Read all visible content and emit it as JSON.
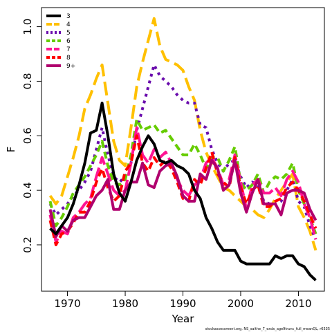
{
  "chart_data": {
    "type": "line",
    "xlabel": "Year",
    "ylabel": "F",
    "xlim": [
      1965.5,
      2014.5
    ],
    "ylim": [
      0.03,
      1.07
    ],
    "xticks": [
      1970,
      1980,
      1990,
      2000,
      2010
    ],
    "yticks": [
      0.2,
      0.4,
      0.6,
      0.8,
      1.0
    ],
    "ytick_labels": [
      "0.2",
      "0.4",
      "0.6",
      "0.8",
      "1.0"
    ],
    "legend_position": "top-left",
    "credit": "stockassessment.org, NS_saithe_7_exdx_age9trunc_full_meanQL, r6535",
    "x": [
      1967,
      1968,
      1969,
      1970,
      1971,
      1972,
      1973,
      1974,
      1975,
      1976,
      1977,
      1978,
      1979,
      1980,
      1981,
      1982,
      1983,
      1984,
      1985,
      1986,
      1987,
      1988,
      1989,
      1990,
      1991,
      1992,
      1993,
      1994,
      1995,
      1996,
      1997,
      1998,
      1999,
      2000,
      2001,
      2002,
      2003,
      2004,
      2005,
      2006,
      2007,
      2008,
      2009,
      2010,
      2011,
      2012,
      2013
    ],
    "series": [
      {
        "name": "3",
        "color": "#000000",
        "dash": "solid",
        "values": [
          0.26,
          0.24,
          0.27,
          0.3,
          0.35,
          0.42,
          0.5,
          0.61,
          0.62,
          0.72,
          0.6,
          0.46,
          0.39,
          0.36,
          0.43,
          0.51,
          0.56,
          0.6,
          0.57,
          0.51,
          0.5,
          0.51,
          0.49,
          0.48,
          0.46,
          0.4,
          0.37,
          0.3,
          0.26,
          0.21,
          0.18,
          0.18,
          0.18,
          0.14,
          0.13,
          0.13,
          0.13,
          0.13,
          0.13,
          0.16,
          0.15,
          0.16,
          0.16,
          0.13,
          0.12,
          0.09,
          0.07
        ]
      },
      {
        "name": "4",
        "color": "#FFC000",
        "dash": "20,8",
        "values": [
          0.38,
          0.35,
          0.38,
          0.45,
          0.52,
          0.6,
          0.7,
          0.75,
          0.81,
          0.86,
          0.72,
          0.58,
          0.51,
          0.49,
          0.63,
          0.78,
          0.87,
          0.95,
          1.03,
          0.93,
          0.88,
          0.87,
          0.86,
          0.84,
          0.78,
          0.73,
          0.62,
          0.54,
          0.49,
          0.45,
          0.41,
          0.4,
          0.38,
          0.36,
          0.34,
          0.33,
          0.31,
          0.3,
          0.33,
          0.37,
          0.4,
          0.43,
          0.46,
          0.34,
          0.3,
          0.25,
          0.18
        ]
      },
      {
        "name": "5",
        "color": "#6A0DAD",
        "dash": "4,6",
        "values": [
          0.35,
          0.31,
          0.33,
          0.35,
          0.38,
          0.4,
          0.43,
          0.47,
          0.55,
          0.63,
          0.53,
          0.45,
          0.43,
          0.45,
          0.5,
          0.62,
          0.7,
          0.78,
          0.86,
          0.82,
          0.8,
          0.78,
          0.75,
          0.73,
          0.72,
          0.72,
          0.64,
          0.63,
          0.55,
          0.5,
          0.47,
          0.5,
          0.51,
          0.45,
          0.41,
          0.43,
          0.42,
          0.36,
          0.35,
          0.35,
          0.36,
          0.4,
          0.44,
          0.36,
          0.34,
          0.27,
          0.22
        ]
      },
      {
        "name": "6",
        "color": "#66CC00",
        "dash": "10,6",
        "values": [
          0.36,
          0.27,
          0.3,
          0.34,
          0.39,
          0.42,
          0.45,
          0.49,
          0.53,
          0.58,
          0.49,
          0.43,
          0.42,
          0.44,
          0.53,
          0.66,
          0.62,
          0.63,
          0.64,
          0.61,
          0.62,
          0.59,
          0.56,
          0.53,
          0.53,
          0.57,
          0.53,
          0.48,
          0.52,
          0.52,
          0.47,
          0.51,
          0.56,
          0.43,
          0.4,
          0.42,
          0.46,
          0.39,
          0.43,
          0.45,
          0.44,
          0.46,
          0.5,
          0.4,
          0.35,
          0.3,
          0.24
        ]
      },
      {
        "name": "7",
        "color": "#FF1493",
        "dash": "20,6",
        "values": [
          0.31,
          0.21,
          0.25,
          0.24,
          0.3,
          0.32,
          0.35,
          0.37,
          0.45,
          0.52,
          0.46,
          0.4,
          0.38,
          0.4,
          0.5,
          0.63,
          0.53,
          0.5,
          0.55,
          0.52,
          0.54,
          0.5,
          0.44,
          0.4,
          0.38,
          0.42,
          0.44,
          0.5,
          0.52,
          0.48,
          0.42,
          0.44,
          0.53,
          0.43,
          0.33,
          0.42,
          0.44,
          0.39,
          0.39,
          0.41,
          0.38,
          0.44,
          0.47,
          0.43,
          0.35,
          0.3,
          0.22
        ]
      },
      {
        "name": "8",
        "color": "#FF0000",
        "dash": "10,6",
        "values": [
          0.29,
          0.2,
          0.24,
          0.25,
          0.28,
          0.32,
          0.32,
          0.36,
          0.43,
          0.48,
          0.41,
          0.36,
          0.38,
          0.47,
          0.5,
          0.6,
          0.5,
          0.47,
          0.52,
          0.49,
          0.51,
          0.48,
          0.43,
          0.37,
          0.36,
          0.44,
          0.42,
          0.48,
          0.54,
          0.46,
          0.43,
          0.41,
          0.52,
          0.41,
          0.35,
          0.4,
          0.42,
          0.34,
          0.34,
          0.36,
          0.37,
          0.41,
          0.43,
          0.4,
          0.36,
          0.31,
          0.26
        ]
      },
      {
        "name": "9+",
        "color": "#B0006E",
        "dash": "solid",
        "values": [
          0.33,
          0.23,
          0.27,
          0.25,
          0.29,
          0.3,
          0.3,
          0.34,
          0.38,
          0.4,
          0.44,
          0.33,
          0.33,
          0.4,
          0.43,
          0.43,
          0.5,
          0.42,
          0.41,
          0.47,
          0.49,
          0.5,
          0.45,
          0.38,
          0.36,
          0.36,
          0.46,
          0.44,
          0.51,
          0.48,
          0.4,
          0.42,
          0.51,
          0.39,
          0.32,
          0.39,
          0.44,
          0.35,
          0.35,
          0.35,
          0.31,
          0.39,
          0.4,
          0.4,
          0.39,
          0.33,
          0.29
        ]
      }
    ]
  }
}
